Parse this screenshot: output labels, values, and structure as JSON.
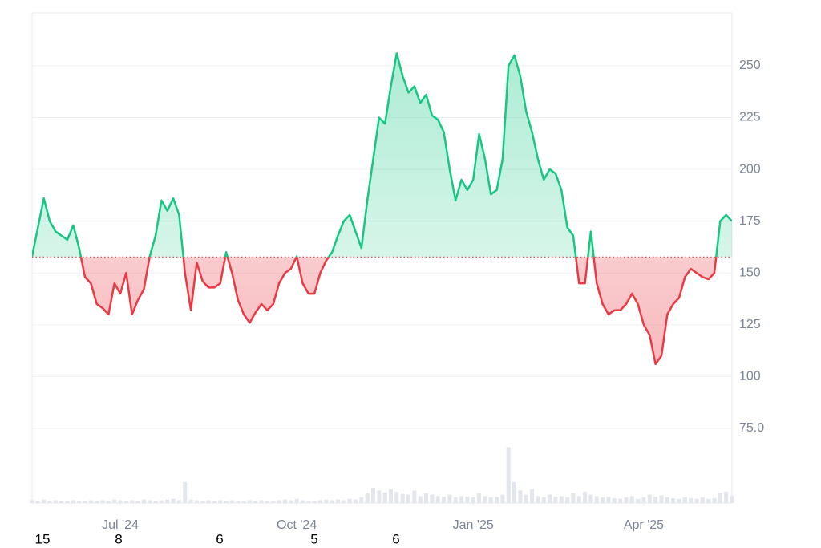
{
  "chart_data": {
    "type": "baseline-line",
    "baseline": 157.7,
    "up_color": "#16c784",
    "down_color": "#ea3943",
    "volume_color": "#e3e6ec",
    "xlim": [
      0,
      119
    ],
    "xticks": [
      {
        "value": 15,
        "label": "Jul '24"
      },
      {
        "value": 45,
        "label": "Oct '24"
      },
      {
        "value": 75,
        "label": "Jan '25"
      },
      {
        "value": 104,
        "label": "Apr '25"
      }
    ],
    "ylim": [
      39,
      275.5
    ],
    "yticks": [
      {
        "value": 75,
        "label": "75.0"
      },
      100,
      125,
      150,
      175,
      200,
      225,
      250
    ],
    "y2lim": [
      0,
      100
    ],
    "grid": true,
    "footer_labels": [
      "15",
      "8",
      "6",
      "5",
      "6"
    ],
    "series": [
      {
        "name": "Price",
        "values": [
          158,
          172,
          186,
          175,
          170,
          168,
          166,
          173,
          162,
          148,
          145,
          135,
          133,
          130,
          145,
          140,
          150,
          130,
          137,
          142,
          158,
          168,
          185,
          180,
          186,
          178,
          150,
          132,
          155,
          146,
          143,
          143,
          145,
          160,
          150,
          137,
          130,
          126,
          131,
          135,
          132,
          135,
          145,
          150,
          152,
          158,
          145,
          140,
          140,
          150,
          156,
          160,
          168,
          175,
          178,
          170,
          162,
          185,
          205,
          225,
          222,
          240,
          256,
          245,
          237,
          240,
          232,
          236,
          226,
          224,
          218,
          200,
          185,
          195,
          190,
          195,
          217,
          205,
          188,
          190,
          205,
          250,
          255,
          245,
          228,
          218,
          205,
          195,
          200,
          198,
          190,
          172,
          168,
          145,
          145,
          170,
          145,
          135,
          130,
          132,
          132,
          135,
          140,
          135,
          125,
          120,
          106,
          110,
          130,
          135,
          138,
          148,
          152,
          150,
          148,
          147,
          150,
          175,
          178,
          175
        ]
      },
      {
        "name": "Volume",
        "axis": "y2",
        "values": [
          4,
          3,
          5,
          3,
          4,
          3,
          3,
          4,
          3,
          3,
          4,
          3,
          4,
          3,
          5,
          4,
          3,
          4,
          3,
          5,
          4,
          3,
          4,
          5,
          6,
          4,
          30,
          5,
          4,
          3,
          4,
          3,
          4,
          3,
          4,
          3,
          3,
          4,
          3,
          4,
          3,
          3,
          4,
          5,
          4,
          6,
          4,
          3,
          3,
          4,
          5,
          4,
          5,
          4,
          6,
          5,
          8,
          14,
          22,
          18,
          15,
          20,
          16,
          13,
          12,
          18,
          10,
          14,
          12,
          10,
          9,
          12,
          8,
          10,
          9,
          8,
          14,
          10,
          8,
          9,
          12,
          80,
          30,
          18,
          12,
          20,
          10,
          8,
          12,
          9,
          10,
          8,
          14,
          10,
          16,
          12,
          10,
          8,
          9,
          7,
          6,
          8,
          10,
          6,
          8,
          12,
          9,
          11,
          8,
          7,
          6,
          8,
          7,
          6,
          8,
          6,
          7,
          14,
          16,
          10
        ]
      }
    ]
  }
}
